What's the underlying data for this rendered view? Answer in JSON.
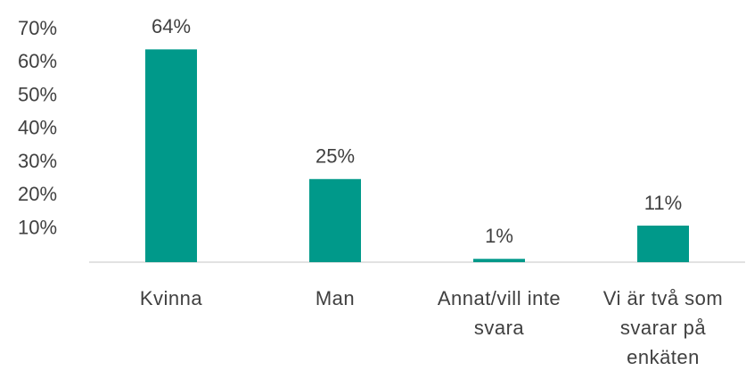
{
  "chart_data": {
    "type": "bar",
    "categories": [
      "Kvinna",
      "Man",
      "Annat/vill inte svara",
      "Vi är två som svarar på enkäten"
    ],
    "values": [
      64,
      25,
      1,
      11
    ],
    "value_labels": [
      "64%",
      "25%",
      "1%",
      "11%"
    ],
    "color": "#00998a",
    "ylim": [
      0,
      70
    ],
    "yticks": [
      {
        "value": 10,
        "label": "10%"
      },
      {
        "value": 20,
        "label": "20%"
      },
      {
        "value": 30,
        "label": "30%"
      },
      {
        "value": 40,
        "label": "40%"
      },
      {
        "value": 50,
        "label": "50%"
      },
      {
        "value": 60,
        "label": "60%"
      },
      {
        "value": 70,
        "label": "70%"
      }
    ]
  }
}
